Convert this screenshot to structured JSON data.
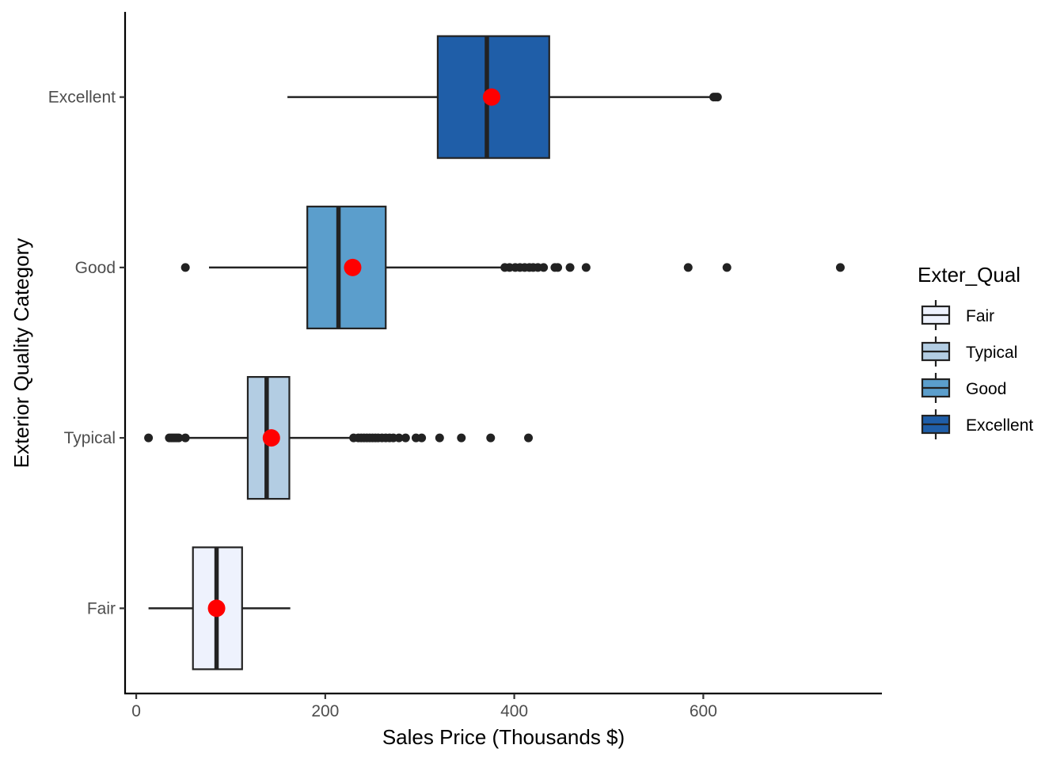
{
  "chart_data": {
    "type": "boxplot",
    "orientation": "horizontal",
    "title": "",
    "xlabel": "Sales Price (Thousands $)",
    "ylabel": "Exterior Quality Category",
    "xlim": [
      -11.8,
      789
    ],
    "x_ticks": [
      0,
      200,
      400,
      600
    ],
    "x_tick_labels": [
      "0",
      "200",
      "400",
      "600"
    ],
    "categories": [
      "Fair",
      "Typical",
      "Good",
      "Excellent"
    ],
    "grid": false,
    "legend": {
      "title": "Exter_Qual",
      "position": "right",
      "entries": [
        "Fair",
        "Typical",
        "Good",
        "Excellent"
      ]
    },
    "mean_marker_color": "#ff0000",
    "series": [
      {
        "category": "Fair",
        "color": "#eef2fd",
        "whisker_low": 13,
        "q1": 60,
        "median": 85,
        "q3": 112,
        "whisker_high": 163,
        "mean": 85,
        "outliers": []
      },
      {
        "category": "Typical",
        "color": "#b3cde3",
        "whisker_low": 52,
        "q1": 118,
        "median": 138,
        "q3": 162,
        "whisker_high": 228,
        "mean": 143,
        "outliers": [
          13,
          35,
          37,
          39,
          41,
          43,
          45,
          52,
          230,
          235,
          238,
          241,
          244,
          247,
          250,
          253,
          256,
          260,
          264,
          268,
          272,
          278,
          285,
          296,
          302,
          321,
          344,
          375,
          415
        ]
      },
      {
        "category": "Good",
        "color": "#5b9ecc",
        "whisker_low": 77,
        "q1": 181,
        "median": 214,
        "q3": 264,
        "whisker_high": 389,
        "mean": 229,
        "outliers": [
          52,
          390,
          395,
          401,
          406,
          411,
          416,
          420,
          425,
          431,
          443,
          446,
          459,
          476,
          584,
          625,
          745
        ]
      },
      {
        "category": "Excellent",
        "color": "#1f5ea8",
        "whisker_low": 160,
        "q1": 319,
        "median": 371,
        "q3": 437,
        "whisker_high": 611,
        "mean": 376,
        "outliers": [
          611,
          613,
          615
        ]
      }
    ]
  }
}
